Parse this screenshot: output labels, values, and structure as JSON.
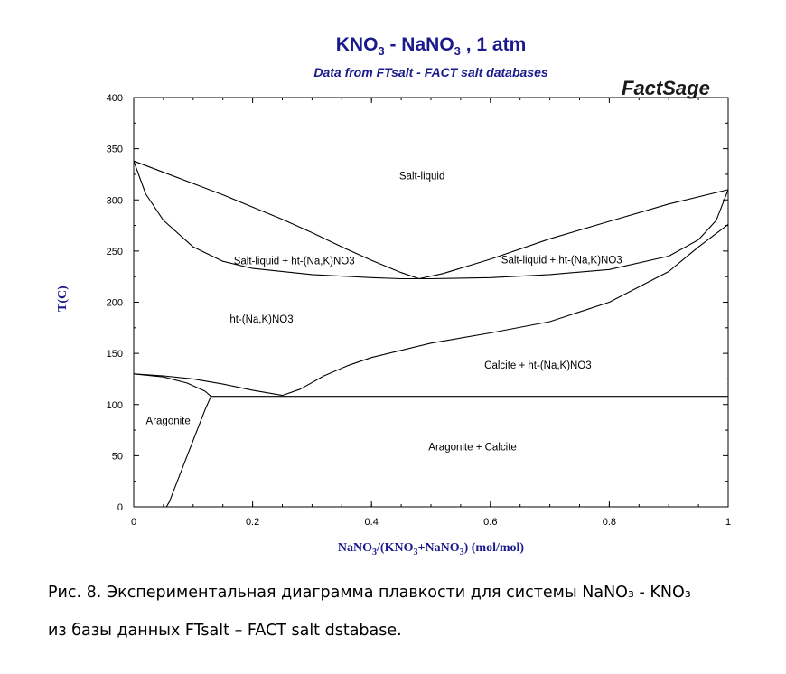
{
  "title": {
    "part1": "KNO",
    "sub1": "3",
    "part2": " - NaNO",
    "sub2": "3",
    "part3": " , 1 atm"
  },
  "subtitle": "Data from FTsalt - FACT salt databases",
  "brand": "FactSage",
  "x_label": {
    "p1": "NaNO",
    "s1": "3",
    "p2": "/(KNO",
    "s2": "3",
    "p3": "+NaNO",
    "s3": "3",
    "p4": ") (mol/mol)"
  },
  "y_label": "T(C)",
  "caption": {
    "line1": "Рис. 8. Экспериментальная диаграмма плавкости для системы  NaNO₃ - KNO₃",
    "line2": "из базы данных FTsalt – FACT salt dstabase."
  },
  "chart_data": {
    "type": "line",
    "xlim": [
      0,
      1
    ],
    "ylim": [
      0,
      400
    ],
    "x_ticks": [
      "0",
      "0.2",
      "0.4",
      "0.6",
      "0.8",
      "1"
    ],
    "y_ticks": [
      "0",
      "50",
      "100",
      "150",
      "200",
      "250",
      "300",
      "350",
      "400"
    ],
    "grid": false,
    "legend": "none",
    "series": [
      {
        "points": [
          [
            0,
            338
          ],
          [
            0.05,
            327
          ],
          [
            0.1,
            316
          ],
          [
            0.15,
            305
          ],
          [
            0.2,
            293
          ],
          [
            0.25,
            281
          ],
          [
            0.3,
            268
          ],
          [
            0.35,
            254
          ],
          [
            0.4,
            241
          ],
          [
            0.45,
            229
          ],
          [
            0.48,
            223
          ]
        ]
      },
      {
        "points": [
          [
            0.48,
            223
          ],
          [
            0.52,
            228
          ],
          [
            0.6,
            242
          ],
          [
            0.7,
            262
          ],
          [
            0.8,
            279
          ],
          [
            0.9,
            296
          ],
          [
            1.0,
            310
          ]
        ]
      },
      {
        "points": [
          [
            0,
            338
          ],
          [
            0.02,
            306
          ],
          [
            0.05,
            280
          ],
          [
            0.1,
            254
          ],
          [
            0.15,
            240
          ],
          [
            0.2,
            233
          ],
          [
            0.3,
            227
          ],
          [
            0.4,
            224
          ],
          [
            0.45,
            223
          ],
          [
            0.5,
            223
          ],
          [
            0.6,
            224
          ],
          [
            0.7,
            227
          ],
          [
            0.8,
            232
          ],
          [
            0.9,
            245
          ],
          [
            0.95,
            261
          ],
          [
            0.98,
            280
          ],
          [
            1.0,
            310
          ]
        ]
      },
      {
        "points": [
          [
            0,
            130
          ],
          [
            0.05,
            128
          ],
          [
            0.1,
            125
          ],
          [
            0.15,
            120
          ],
          [
            0.2,
            114
          ],
          [
            0.25,
            109
          ]
        ]
      },
      {
        "points": [
          [
            0.25,
            109
          ],
          [
            0.28,
            115
          ],
          [
            0.32,
            128
          ],
          [
            0.36,
            138
          ],
          [
            0.4,
            146
          ],
          [
            0.5,
            160
          ],
          [
            0.6,
            170
          ],
          [
            0.7,
            181
          ],
          [
            0.8,
            200
          ],
          [
            0.9,
            230
          ],
          [
            0.95,
            254
          ],
          [
            1.0,
            276
          ]
        ]
      },
      {
        "points": [
          [
            0,
            130
          ],
          [
            0.05,
            127
          ],
          [
            0.09,
            121
          ],
          [
            0.12,
            113
          ],
          [
            0.13,
            108
          ]
        ]
      },
      {
        "points": [
          [
            0.13,
            108
          ],
          [
            1.0,
            108
          ]
        ]
      },
      {
        "points": [
          [
            0.13,
            108
          ],
          [
            0.12,
            95
          ],
          [
            0.1,
            65
          ],
          [
            0.08,
            35
          ],
          [
            0.06,
            5
          ],
          [
            0.055,
            0
          ]
        ]
      }
    ],
    "annotations": [
      {
        "text": "Salt-liquid",
        "x": 0.485,
        "y": 320
      },
      {
        "text": "Salt-liquid + ht-(Na,K)NO3",
        "x": 0.27,
        "y": 237
      },
      {
        "text": "Salt-liquid + ht-(Na,K)NO3",
        "x": 0.72,
        "y": 238
      },
      {
        "text": "ht-(Na,K)NO3",
        "x": 0.215,
        "y": 180
      },
      {
        "text": "Calcite + ht-(Na,K)NO3",
        "x": 0.68,
        "y": 135
      },
      {
        "text": "Aragonite",
        "x": 0.058,
        "y": 81
      },
      {
        "text": "Aragonite + Calcite",
        "x": 0.57,
        "y": 55
      }
    ]
  },
  "colors": {
    "title": "#1a1a8c",
    "axis_label": "#1a1a8c",
    "line": "#000000"
  }
}
